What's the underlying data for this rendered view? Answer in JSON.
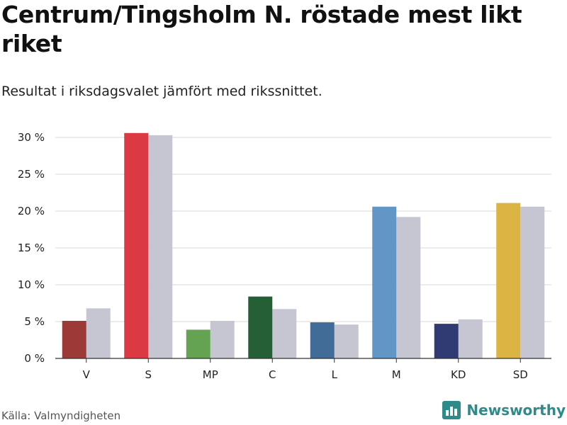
{
  "title": "Centrum/Tingsholm N. röstade mest likt riket",
  "subtitle": "Resultat i riksdagsvalet jämfört med rikssnittet.",
  "source": "Källa: Valmyndigheten",
  "brand": "Newsworthy",
  "chart_data": {
    "type": "bar",
    "categories": [
      "V",
      "S",
      "MP",
      "C",
      "L",
      "M",
      "KD",
      "SD"
    ],
    "series": [
      {
        "values": [
          5.1,
          30.6,
          3.9,
          8.4,
          4.9,
          20.6,
          4.7,
          21.1
        ]
      },
      {
        "values": [
          6.8,
          30.3,
          5.1,
          6.7,
          4.6,
          19.2,
          5.3,
          20.6
        ]
      }
    ],
    "category_colors": [
      "#9b3a36",
      "#dc3a42",
      "#63a351",
      "#255f36",
      "#426c98",
      "#6296c6",
      "#2f3b72",
      "#dcb444"
    ],
    "comparison_color": "#c6c6d2",
    "ylim": [
      0,
      31
    ],
    "yticks": [
      0,
      5,
      10,
      15,
      20,
      25,
      30
    ],
    "ytick_labels": [
      "0 %",
      "5 %",
      "10 %",
      "15 %",
      "20 %",
      "25 %",
      "30 %"
    ],
    "grid": true
  }
}
